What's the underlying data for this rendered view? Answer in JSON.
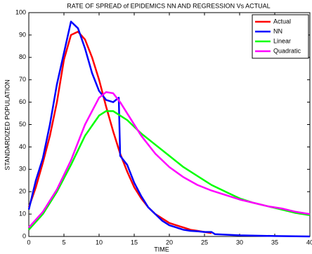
{
  "chart_data": {
    "type": "line",
    "title": "RATE OF SPREAD of EPIDEMICS NN AND REGRESSION Vs ACTUAL",
    "x_label": "TIME",
    "y_label": "STANDARDIZED POPULATION",
    "xlim": [
      0,
      40
    ],
    "ylim": [
      0,
      100
    ],
    "xticks": [
      0,
      5,
      10,
      15,
      20,
      25,
      30,
      35,
      40
    ],
    "yticks": [
      0,
      10,
      20,
      30,
      40,
      50,
      60,
      70,
      80,
      90,
      100
    ],
    "legend": "top-right",
    "series": [
      {
        "name": "Actual",
        "color": "#ff0000",
        "x": [
          0,
          1,
          2,
          3,
          4,
          5,
          6,
          7,
          8,
          9,
          10,
          11,
          12,
          13,
          14,
          15,
          16,
          17,
          18,
          19,
          20,
          21,
          22,
          23,
          24,
          25,
          26
        ],
        "values": [
          13,
          22,
          33,
          45,
          60,
          79,
          90,
          91.5,
          88,
          80,
          70,
          58,
          47,
          37,
          29,
          22,
          17,
          13,
          10,
          8,
          6,
          5,
          4,
          3,
          2.5,
          2,
          1.5
        ]
      },
      {
        "name": "NN",
        "color": "#0000ff",
        "x": [
          0,
          1,
          2,
          3,
          4,
          5,
          6,
          7,
          8,
          9,
          10,
          11,
          12,
          12.8,
          13,
          14,
          15,
          16,
          17,
          18,
          19,
          20,
          21,
          22,
          23,
          24,
          25,
          26,
          26.5,
          30,
          35,
          40
        ],
        "values": [
          12,
          25,
          35,
          50,
          68,
          82,
          96,
          93,
          84,
          73,
          65,
          61,
          60,
          62,
          36,
          32,
          24,
          18,
          13,
          10,
          7,
          5,
          4,
          3,
          2.5,
          2.3,
          2,
          2,
          1,
          0.5,
          0.2,
          0
        ]
      },
      {
        "name": "Linear",
        "color": "#00ff00",
        "x": [
          0,
          2,
          4,
          6,
          8,
          10,
          11,
          12,
          13,
          14,
          16,
          18,
          20,
          22,
          24,
          26,
          28,
          30,
          32,
          34,
          36,
          38,
          40
        ],
        "values": [
          3,
          10,
          20,
          32,
          45,
          54,
          56,
          56,
          54,
          52,
          46,
          41,
          36,
          31,
          27,
          23,
          20,
          17,
          15,
          13.5,
          12,
          10.5,
          9.5
        ]
      },
      {
        "name": "Quadratic",
        "color": "#ff00ff",
        "x": [
          0,
          2,
          4,
          6,
          8,
          10,
          11,
          12,
          13,
          14,
          16,
          18,
          20,
          22,
          24,
          26,
          28,
          30,
          32,
          34,
          36,
          38,
          40
        ],
        "values": [
          4,
          11,
          21,
          34,
          50,
          62,
          64.5,
          64,
          60,
          55,
          45,
          37,
          31,
          26.5,
          23,
          20.5,
          18.5,
          16.5,
          15,
          13.5,
          12.5,
          11,
          10
        ]
      }
    ]
  }
}
